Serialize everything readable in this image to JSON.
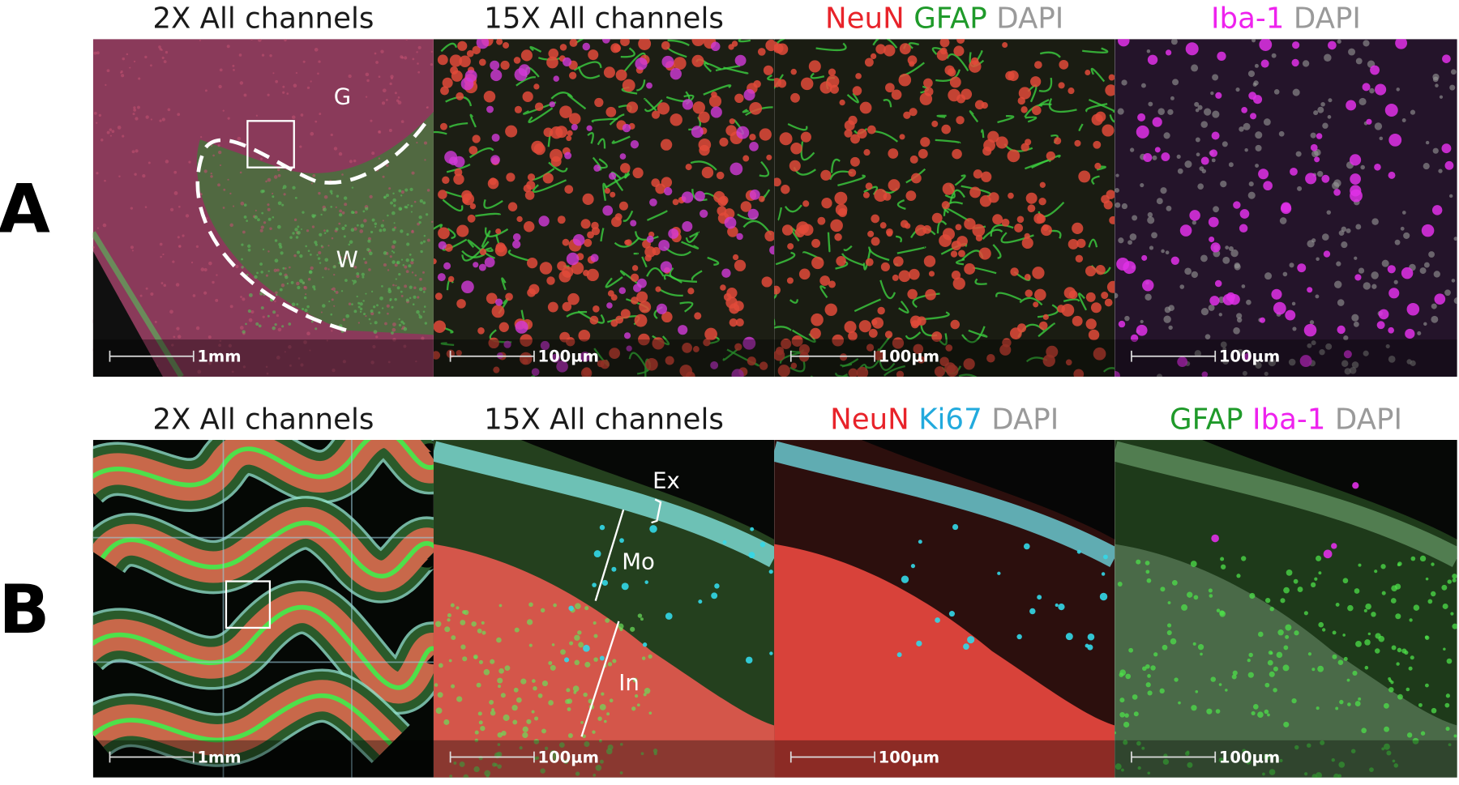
{
  "rows": [
    {
      "label": "A",
      "panels": [
        {
          "title": [
            {
              "text": "2X All channels",
              "color": "#1a1a1a"
            }
          ],
          "scale_bar": "1mm",
          "annotations": [
            "G",
            "W"
          ]
        },
        {
          "title": [
            {
              "text": "15X All channels",
              "color": "#1a1a1a"
            }
          ],
          "scale_bar": "100µm"
        },
        {
          "title": [
            {
              "text": "NeuN",
              "color": "#e8232a"
            },
            {
              "text": "GFAP",
              "color": "#1f9a2a"
            },
            {
              "text": "DAPI",
              "color": "#9a9a9a"
            }
          ],
          "scale_bar": "100µm"
        },
        {
          "title": [
            {
              "text": "Iba-1",
              "color": "#ee22ee"
            },
            {
              "text": "DAPI",
              "color": "#9a9a9a"
            }
          ],
          "scale_bar": "100µm"
        }
      ]
    },
    {
      "label": "B",
      "panels": [
        {
          "title": [
            {
              "text": "2X All channels",
              "color": "#1a1a1a"
            }
          ],
          "scale_bar": "1mm"
        },
        {
          "title": [
            {
              "text": "15X All channels",
              "color": "#1a1a1a"
            }
          ],
          "scale_bar": "100µm",
          "annotations": [
            "Ex",
            "Mo",
            "In"
          ]
        },
        {
          "title": [
            {
              "text": "NeuN",
              "color": "#e8232a"
            },
            {
              "text": "Ki67",
              "color": "#22aadd"
            },
            {
              "text": "DAPI",
              "color": "#9a9a9a"
            }
          ],
          "scale_bar": "100µm"
        },
        {
          "title": [
            {
              "text": "GFAP",
              "color": "#1f9a2a"
            },
            {
              "text": "Iba-1",
              "color": "#ee22ee"
            },
            {
              "text": "DAPI",
              "color": "#9a9a9a"
            }
          ],
          "scale_bar": "100µm"
        }
      ]
    }
  ]
}
